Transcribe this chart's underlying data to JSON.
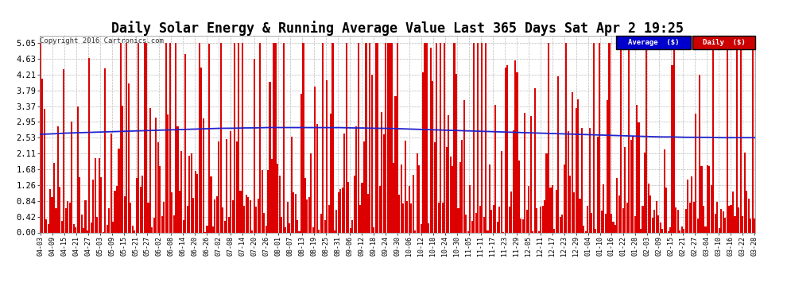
{
  "title": "Daily Solar Energy & Running Average Value Last 365 Days Sat Apr 2 19:25",
  "copyright": "Copyright 2016 Cartronics.com",
  "yticks": [
    0.0,
    0.42,
    0.84,
    1.26,
    1.68,
    2.11,
    2.53,
    2.95,
    3.37,
    3.79,
    4.21,
    4.63,
    5.05
  ],
  "ymax": 5.25,
  "ymin": 0.0,
  "bar_color": "#dd0000",
  "avg_color": "#2222cc",
  "bg_color": "#ffffff",
  "grid_color": "#bbbbbb",
  "title_fontsize": 12,
  "legend_avg_bg": "#0000cc",
  "legend_daily_bg": "#cc0000",
  "x_label_fontsize": 6.0,
  "xtick_labels": [
    "04-03",
    "04-09",
    "04-15",
    "04-21",
    "04-27",
    "05-03",
    "05-09",
    "05-15",
    "05-21",
    "05-27",
    "06-02",
    "06-08",
    "06-14",
    "06-20",
    "06-26",
    "07-02",
    "07-08",
    "07-14",
    "07-20",
    "07-26",
    "08-01",
    "08-07",
    "08-13",
    "08-19",
    "08-25",
    "08-31",
    "09-06",
    "09-12",
    "09-18",
    "09-24",
    "09-30",
    "10-06",
    "10-12",
    "10-18",
    "10-24",
    "10-30",
    "11-05",
    "11-11",
    "11-17",
    "11-23",
    "11-29",
    "12-05",
    "12-11",
    "12-17",
    "12-23",
    "12-29",
    "01-04",
    "01-10",
    "01-16",
    "01-22",
    "01-28",
    "02-03",
    "02-09",
    "02-15",
    "02-21",
    "02-27",
    "03-04",
    "03-10",
    "03-16",
    "03-22",
    "03-28"
  ],
  "avg_values": [
    2.62,
    2.63,
    2.65,
    2.66,
    2.67,
    2.68,
    2.69,
    2.7,
    2.71,
    2.72,
    2.73,
    2.74,
    2.75,
    2.76,
    2.77,
    2.78,
    2.78,
    2.79,
    2.79,
    2.8,
    2.8,
    2.8,
    2.8,
    2.8,
    2.8,
    2.8,
    2.79,
    2.79,
    2.78,
    2.78,
    2.77,
    2.76,
    2.75,
    2.74,
    2.73,
    2.72,
    2.71,
    2.7,
    2.69,
    2.68,
    2.67,
    2.66,
    2.65,
    2.64,
    2.63,
    2.62,
    2.61,
    2.6,
    2.59,
    2.58,
    2.57,
    2.56,
    2.55,
    2.55,
    2.54,
    2.54,
    2.54,
    2.53,
    2.53,
    2.53,
    2.53
  ]
}
